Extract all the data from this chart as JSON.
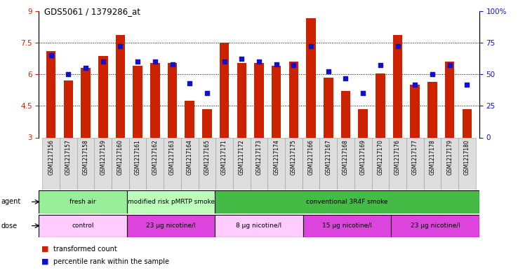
{
  "title": "GDS5061 / 1379286_at",
  "samples": [
    "GSM1217156",
    "GSM1217157",
    "GSM1217158",
    "GSM1217159",
    "GSM1217160",
    "GSM1217161",
    "GSM1217162",
    "GSM1217163",
    "GSM1217164",
    "GSM1217165",
    "GSM1217171",
    "GSM1217172",
    "GSM1217173",
    "GSM1217174",
    "GSM1217175",
    "GSM1217166",
    "GSM1217167",
    "GSM1217168",
    "GSM1217169",
    "GSM1217170",
    "GSM1217176",
    "GSM1217177",
    "GSM1217178",
    "GSM1217179",
    "GSM1217180"
  ],
  "bar_values": [
    7.1,
    5.7,
    6.3,
    6.85,
    7.85,
    6.4,
    6.55,
    6.55,
    4.75,
    4.35,
    7.5,
    6.55,
    6.55,
    6.4,
    6.6,
    8.65,
    5.85,
    5.2,
    4.35,
    6.05,
    7.85,
    5.5,
    5.65,
    6.6,
    4.35
  ],
  "dot_values": [
    65,
    50,
    55,
    60,
    72,
    60,
    60,
    58,
    43,
    35,
    60,
    62,
    60,
    58,
    57,
    72,
    52,
    47,
    35,
    57,
    72,
    42,
    50,
    57,
    42
  ],
  "ylim_left": [
    3,
    9
  ],
  "ylim_right": [
    0,
    100
  ],
  "yticks_left": [
    3,
    4.5,
    6,
    7.5,
    9
  ],
  "yticks_right": [
    0,
    25,
    50,
    75,
    100
  ],
  "bar_color": "#cc2200",
  "dot_color": "#1111cc",
  "bar_bottom": 3,
  "agent_groups": [
    {
      "label": "fresh air",
      "start": 0,
      "end": 5,
      "color": "#99ee99"
    },
    {
      "label": "modified risk pMRTP smoke",
      "start": 5,
      "end": 10,
      "color": "#bbffbb"
    },
    {
      "label": "conventional 3R4F smoke",
      "start": 10,
      "end": 25,
      "color": "#44bb44"
    }
  ],
  "dose_groups": [
    {
      "label": "control",
      "start": 0,
      "end": 5,
      "color": "#ffccff"
    },
    {
      "label": "23 μg nicotine/l",
      "start": 5,
      "end": 10,
      "color": "#dd44dd"
    },
    {
      "label": "8 μg nicotine/l",
      "start": 10,
      "end": 15,
      "color": "#ffccff"
    },
    {
      "label": "15 μg nicotine/l",
      "start": 15,
      "end": 20,
      "color": "#dd44dd"
    },
    {
      "label": "23 μg nicotine/l",
      "start": 20,
      "end": 25,
      "color": "#dd44dd"
    }
  ]
}
